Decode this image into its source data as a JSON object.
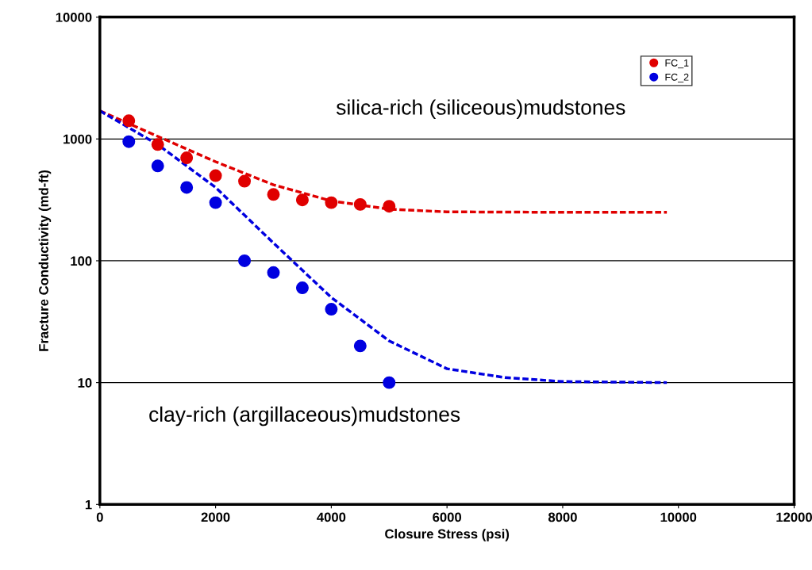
{
  "chart_data": {
    "type": "scatter",
    "xlabel": "Closure Stress (psi)",
    "ylabel": "Fracture Conductivity (md-ft)",
    "log": "y",
    "xlim": [
      0,
      12000
    ],
    "ylim": [
      1,
      10000
    ],
    "xticks": [
      0,
      2000,
      4000,
      6000,
      8000,
      10000,
      12000
    ],
    "yticks": [
      1,
      10,
      100,
      1000,
      10000
    ],
    "grid": "y",
    "legend": "top right",
    "marker": "circle",
    "annotations": [
      "silica-rich (siliceous)mudstones",
      "clay-rich (argillaceous)mudstones"
    ],
    "series": [
      {
        "name": "FC_1",
        "color": "#e00000",
        "x": [
          500,
          1000,
          1500,
          2000,
          2500,
          3000,
          3500,
          4000,
          4500,
          5000
        ],
        "values": [
          1410,
          900,
          700,
          500,
          450,
          350,
          316,
          300,
          290,
          280
        ]
      },
      {
        "name": "FC_2",
        "color": "#0000e0",
        "x": [
          500,
          1000,
          1500,
          2000,
          2500,
          3000,
          3500,
          4000,
          4500,
          5000
        ],
        "values": [
          950,
          600,
          400,
          300,
          100,
          80,
          60,
          40,
          20,
          10
        ]
      },
      {
        "type": "line",
        "line_style": "dashed",
        "marker": "none",
        "color": "#e00000",
        "x": [
          0,
          1000,
          2000,
          3000,
          4000,
          5000,
          6000,
          8000,
          9800
        ],
        "values": [
          1700,
          1050,
          650,
          420,
          310,
          265,
          252,
          250,
          250
        ]
      },
      {
        "type": "line",
        "line_style": "dashed",
        "marker": "none",
        "color": "#0000e0",
        "x": [
          0,
          1000,
          2000,
          3000,
          4000,
          5000,
          6000,
          7000,
          8000,
          9800
        ],
        "values": [
          1700,
          900,
          400,
          140,
          50,
          22,
          13,
          11,
          10.2,
          10
        ]
      }
    ]
  }
}
